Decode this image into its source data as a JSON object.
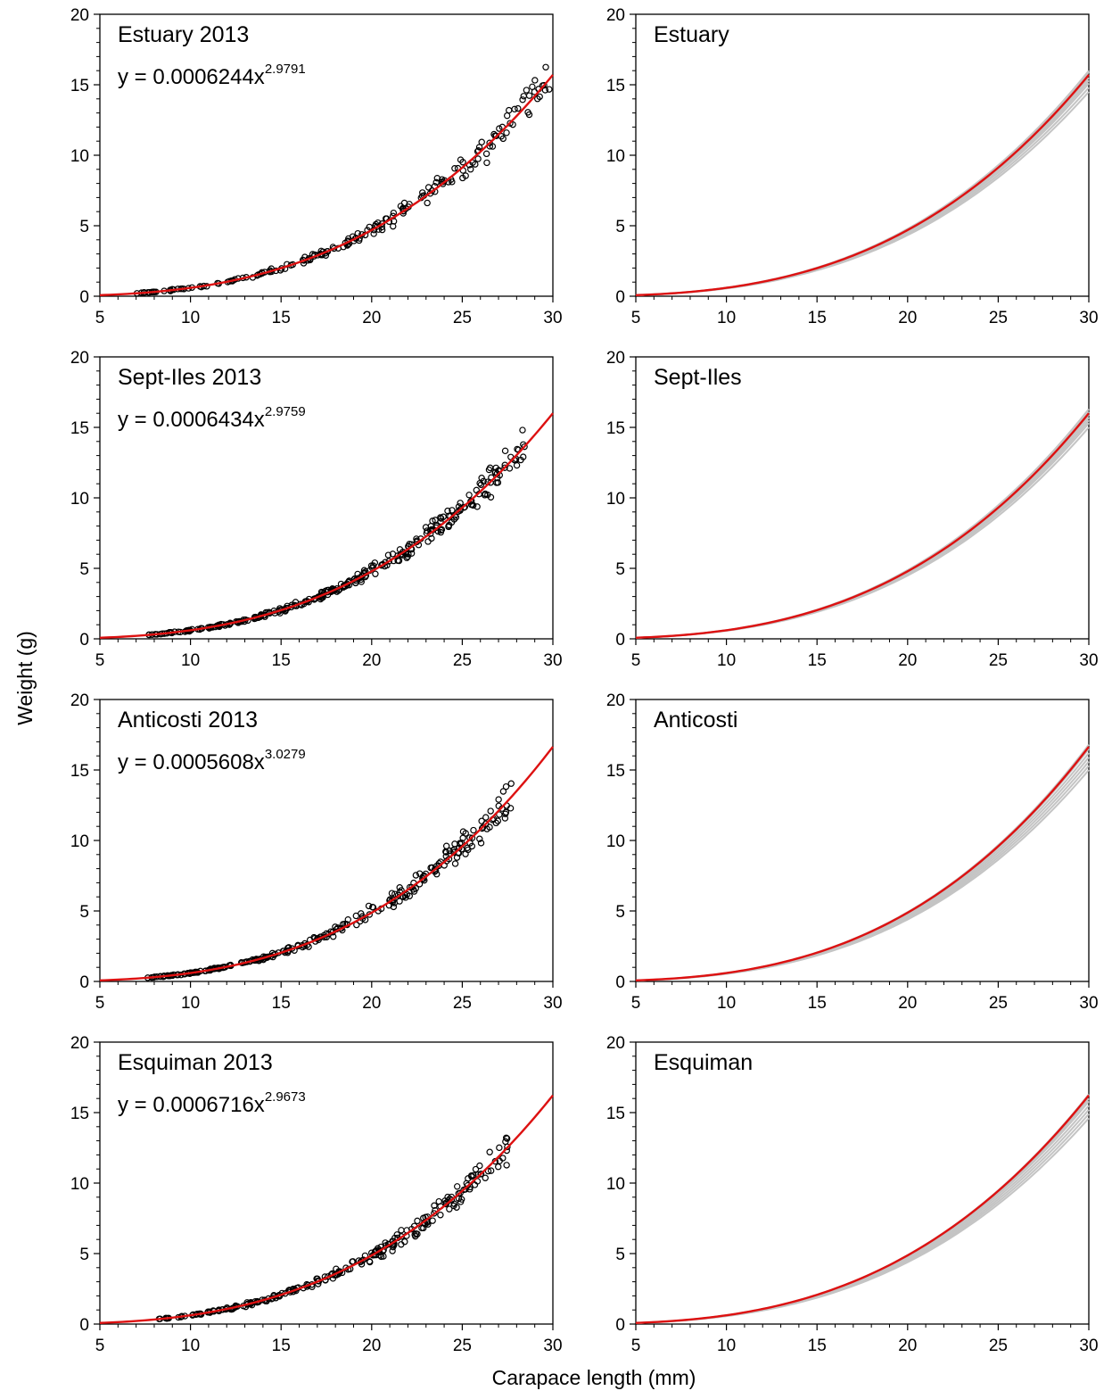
{
  "figure": {
    "xlabel": "Carapace length (mm)",
    "ylabel": "Weight (g)"
  },
  "colors": {
    "fit_line": "#dd1111",
    "sim_lines": "#c4c4c4",
    "points": "#000000",
    "axes": "#000000"
  },
  "chart_data": [
    {
      "type": "scatter",
      "panel": "Estuary 2013 (observed)",
      "title": "Estuary 2013",
      "equation": {
        "prefix": "y = 0.0006244x",
        "exponent": "2.9791"
      },
      "fit": {
        "a": 0.0006244,
        "b": 2.9791
      },
      "x_range": [
        6.5,
        29.8
      ],
      "xlim": [
        5,
        30
      ],
      "ylim": [
        0,
        20
      ],
      "xticks": [
        5,
        10,
        15,
        20,
        25,
        30
      ],
      "yticks": [
        0,
        5,
        10,
        15,
        20
      ],
      "sample_n": 200,
      "seed": 11,
      "grid": false
    },
    {
      "type": "line",
      "panel": "Estuary (bootstrap curves)",
      "title": "Estuary",
      "fit": {
        "a": 0.0006244,
        "b": 2.9791
      },
      "xlim": [
        5,
        30
      ],
      "ylim": [
        0,
        20
      ],
      "xticks": [
        5,
        10,
        15,
        20,
        25,
        30
      ],
      "yticks": [
        0,
        5,
        10,
        15,
        20
      ],
      "sim_end_values": [
        14.5,
        14.8,
        15.1,
        15.3,
        15.5,
        15.7,
        15.9,
        16.0
      ],
      "grid": false
    },
    {
      "type": "scatter",
      "panel": "Sept-Iles 2013 (observed)",
      "title": "Sept-Iles 2013",
      "equation": {
        "prefix": "y = 0.0006434x",
        "exponent": "2.9759"
      },
      "fit": {
        "a": 0.0006434,
        "b": 2.9759
      },
      "x_range": [
        7.5,
        28.5
      ],
      "xlim": [
        5,
        30
      ],
      "ylim": [
        0,
        20
      ],
      "xticks": [
        5,
        10,
        15,
        20,
        25,
        30
      ],
      "yticks": [
        0,
        5,
        10,
        15,
        20
      ],
      "sample_n": 300,
      "seed": 23,
      "grid": false
    },
    {
      "type": "line",
      "panel": "Sept-Iles (bootstrap curves)",
      "title": "Sept-Iles",
      "fit": {
        "a": 0.0006434,
        "b": 2.9759
      },
      "xlim": [
        5,
        30
      ],
      "ylim": [
        0,
        20
      ],
      "xticks": [
        5,
        10,
        15,
        20,
        25,
        30
      ],
      "yticks": [
        0,
        5,
        10,
        15,
        20
      ],
      "sim_end_values": [
        15.0,
        15.3,
        15.5,
        15.7,
        15.9,
        16.1,
        16.3
      ],
      "grid": false
    },
    {
      "type": "scatter",
      "panel": "Anticosti 2013 (observed)",
      "title": "Anticosti 2013",
      "equation": {
        "prefix": "y = 0.0005608x",
        "exponent": "3.0279"
      },
      "fit": {
        "a": 0.0005608,
        "b": 3.0279
      },
      "x_range": [
        7.5,
        27.8
      ],
      "xlim": [
        5,
        30
      ],
      "ylim": [
        0,
        20
      ],
      "xticks": [
        5,
        10,
        15,
        20,
        25,
        30
      ],
      "yticks": [
        0,
        5,
        10,
        15,
        20
      ],
      "sample_n": 260,
      "seed": 37,
      "grid": false
    },
    {
      "type": "line",
      "panel": "Anticosti (bootstrap curves)",
      "title": "Anticosti",
      "fit": {
        "a": 0.0005608,
        "b": 3.0279
      },
      "xlim": [
        5,
        30
      ],
      "ylim": [
        0,
        20
      ],
      "xticks": [
        5,
        10,
        15,
        20,
        25,
        30
      ],
      "yticks": [
        0,
        5,
        10,
        15,
        20
      ],
      "sim_end_values": [
        15.0,
        15.3,
        15.6,
        15.9,
        16.2,
        16.5,
        16.8
      ],
      "grid": false
    },
    {
      "type": "scatter",
      "panel": "Esquiman 2013 (observed)",
      "title": "Esquiman 2013",
      "equation": {
        "prefix": "y = 0.0006716x",
        "exponent": "2.9673"
      },
      "fit": {
        "a": 0.0006716,
        "b": 2.9673
      },
      "x_range": [
        8.0,
        27.5
      ],
      "xlim": [
        5,
        30
      ],
      "ylim": [
        0,
        20
      ],
      "xticks": [
        5,
        10,
        15,
        20,
        25,
        30
      ],
      "yticks": [
        0,
        5,
        10,
        15,
        20
      ],
      "sample_n": 240,
      "seed": 53,
      "grid": false
    },
    {
      "type": "line",
      "panel": "Esquiman (bootstrap curves)",
      "title": "Esquiman",
      "fit": {
        "a": 0.0006716,
        "b": 2.9673
      },
      "xlim": [
        5,
        30
      ],
      "ylim": [
        0,
        20
      ],
      "xticks": [
        5,
        10,
        15,
        20,
        25,
        30
      ],
      "yticks": [
        0,
        5,
        10,
        15,
        20
      ],
      "sim_end_values": [
        14.6,
        14.9,
        15.2,
        15.5,
        15.8,
        16.0,
        16.3
      ],
      "grid": false
    }
  ]
}
